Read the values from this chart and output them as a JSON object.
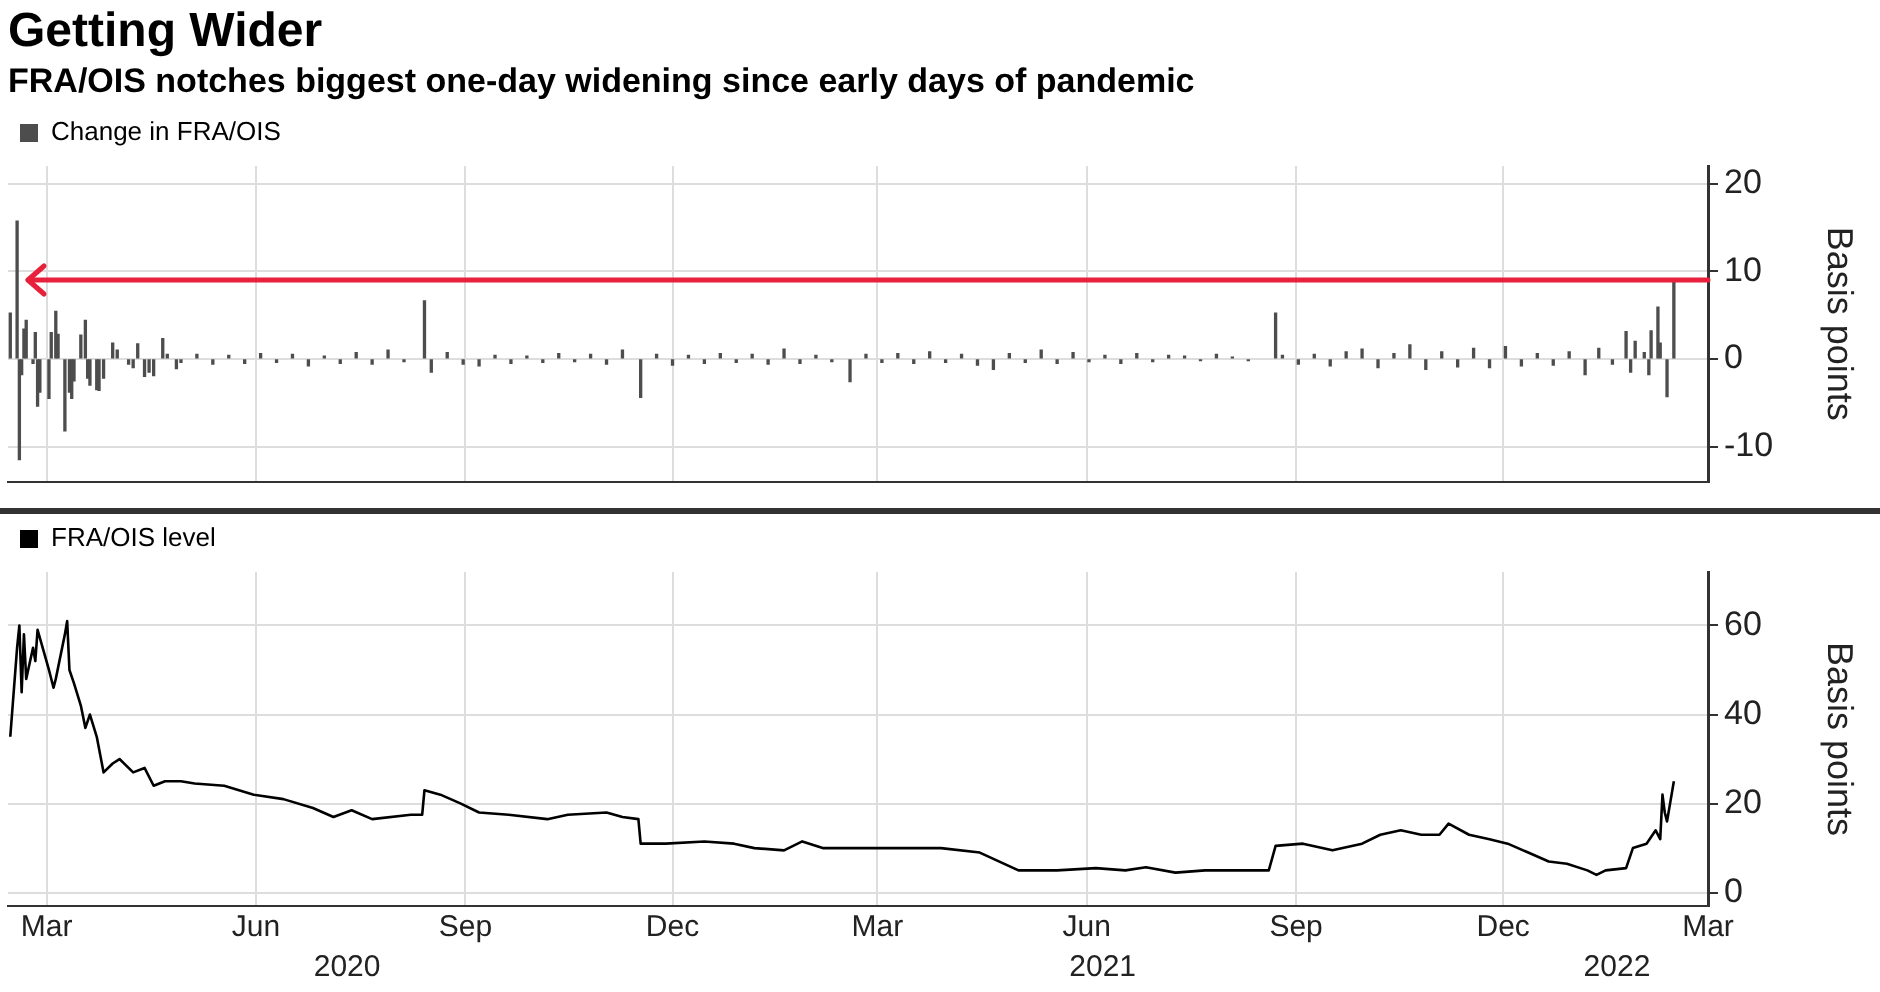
{
  "chart_data": [
    {
      "type": "bar",
      "title": "Getting Wider",
      "subtitle": "FRA/OIS notches biggest one-day widening since early days of pandemic",
      "ylabel": "Basis points",
      "legend": "top left",
      "grid": true,
      "tick_labels": "y",
      "xlim": [
        "2020-02-13",
        "2022-03-01"
      ],
      "xticks": [
        {
          "value": "2020-03-01",
          "label": null
        },
        {
          "value": "2020-06-01",
          "label": null
        },
        {
          "value": "2020-09-01",
          "label": null
        },
        {
          "value": "2020-12-01",
          "label": null
        },
        {
          "value": "2021-03-01",
          "label": null
        },
        {
          "value": "2021-06-01",
          "label": null
        },
        {
          "value": "2021-09-01",
          "label": null
        },
        {
          "value": "2021-12-01",
          "label": null
        },
        {
          "value": "2022-03-01",
          "label": null
        }
      ],
      "ylim": [
        -14,
        22
      ],
      "yticks": [
        -10,
        0,
        10,
        20
      ],
      "ref_lines": [
        {
          "axis": "y",
          "value": 9,
          "color": "#e8203c"
        }
      ],
      "series": [
        {
          "name": "Change in FRA/OIS",
          "color": "#4d4d4d",
          "x": [
            "2020-02-14",
            "2020-02-17",
            "2020-02-18",
            "2020-02-19",
            "2020-02-20",
            "2020-02-21",
            "2020-02-24",
            "2020-02-25",
            "2020-02-26",
            "2020-02-27",
            "2020-03-02",
            "2020-03-03",
            "2020-03-05",
            "2020-03-06",
            "2020-03-09",
            "2020-03-11",
            "2020-03-12",
            "2020-03-13",
            "2020-03-16",
            "2020-03-18",
            "2020-03-19",
            "2020-03-20",
            "2020-03-23",
            "2020-03-24",
            "2020-03-26",
            "2020-03-30",
            "2020-04-01",
            "2020-04-06",
            "2020-04-08",
            "2020-04-10",
            "2020-04-13",
            "2020-04-15",
            "2020-04-17",
            "2020-04-21",
            "2020-04-23",
            "2020-04-27",
            "2020-04-29",
            "2020-05-06",
            "2020-05-13",
            "2020-05-20",
            "2020-05-27",
            "2020-06-03",
            "2020-06-10",
            "2020-06-17",
            "2020-06-24",
            "2020-07-01",
            "2020-07-08",
            "2020-07-15",
            "2020-07-22",
            "2020-07-29",
            "2020-08-05",
            "2020-08-14",
            "2020-08-17",
            "2020-08-24",
            "2020-08-31",
            "2020-09-07",
            "2020-09-14",
            "2020-09-21",
            "2020-09-28",
            "2020-10-05",
            "2020-10-12",
            "2020-10-19",
            "2020-10-26",
            "2020-11-02",
            "2020-11-09",
            "2020-11-17",
            "2020-11-24",
            "2020-12-01",
            "2020-12-08",
            "2020-12-15",
            "2020-12-22",
            "2020-12-29",
            "2021-01-05",
            "2021-01-12",
            "2021-01-19",
            "2021-01-26",
            "2021-02-02",
            "2021-02-09",
            "2021-02-17",
            "2021-02-24",
            "2021-03-03",
            "2021-03-10",
            "2021-03-17",
            "2021-03-24",
            "2021-03-31",
            "2021-04-07",
            "2021-04-14",
            "2021-04-21",
            "2021-04-28",
            "2021-05-05",
            "2021-05-12",
            "2021-05-19",
            "2021-05-26",
            "2021-06-02",
            "2021-06-09",
            "2021-06-16",
            "2021-06-23",
            "2021-06-30",
            "2021-07-07",
            "2021-07-14",
            "2021-07-21",
            "2021-07-28",
            "2021-08-04",
            "2021-08-11",
            "2021-08-23",
            "2021-08-26",
            "2021-09-02",
            "2021-09-09",
            "2021-09-16",
            "2021-09-23",
            "2021-09-30",
            "2021-10-07",
            "2021-10-14",
            "2021-10-21",
            "2021-10-28",
            "2021-11-04",
            "2021-11-11",
            "2021-11-18",
            "2021-11-25",
            "2021-12-02",
            "2021-12-09",
            "2021-12-16",
            "2021-12-23",
            "2021-12-30",
            "2022-01-06",
            "2022-01-12",
            "2022-01-18",
            "2022-01-24",
            "2022-01-26",
            "2022-01-28",
            "2022-02-01",
            "2022-02-03",
            "2022-02-04",
            "2022-02-07",
            "2022-02-08",
            "2022-02-11",
            "2022-02-14"
          ],
          "values": [
            5.2,
            15.7,
            -11.5,
            -1.8,
            3.4,
            4.4,
            -0.5,
            3.0,
            -5.4,
            -3.8,
            -4.5,
            3.0,
            5.4,
            2.8,
            -8.2,
            -3.8,
            -4.5,
            -2.5,
            2.7,
            4.4,
            -2.2,
            -3.0,
            -3.5,
            -3.6,
            -2.2,
            1.8,
            1.0,
            -0.6,
            -1.0,
            1.7,
            -2.0,
            -1.5,
            -1.9,
            2.3,
            0.5,
            -1.1,
            -0.4,
            0.5,
            -0.6,
            0.4,
            -0.5,
            0.6,
            -0.4,
            0.5,
            -0.8,
            0.3,
            -0.5,
            0.7,
            -0.6,
            1.0,
            -0.3,
            6.6,
            -1.5,
            0.7,
            -0.6,
            -0.8,
            0.4,
            -0.5,
            0.3,
            -0.4,
            0.6,
            -0.3,
            0.5,
            -0.6,
            1.0,
            -4.4,
            0.5,
            -0.7,
            0.4,
            -0.5,
            0.6,
            -0.4,
            0.5,
            -0.6,
            1.1,
            -0.5,
            0.4,
            -0.3,
            -2.6,
            0.5,
            -0.4,
            0.6,
            -0.5,
            0.8,
            -0.4,
            0.5,
            -0.7,
            -1.2,
            0.6,
            -0.4,
            1.0,
            -0.5,
            0.7,
            -0.3,
            0.4,
            -0.5,
            0.6,
            -0.3,
            0.4,
            0.3,
            -0.2,
            0.5,
            0.2,
            -0.2,
            5.2,
            0.4,
            -0.6,
            0.5,
            -0.8,
            0.8,
            1.1,
            -1.0,
            0.6,
            1.6,
            -1.2,
            0.8,
            -0.9,
            1.2,
            -1.0,
            1.4,
            -0.8,
            0.6,
            -0.7,
            0.8,
            -1.8,
            1.2,
            -0.6,
            3.1,
            -1.5,
            2.0,
            0.7,
            -1.8,
            3.2,
            5.9,
            1.8,
            -4.3,
            9.0
          ]
        }
      ]
    },
    {
      "type": "line",
      "ylabel": "Basis points",
      "legend": "top left",
      "grid": true,
      "marker": "none",
      "xlim": [
        "2020-02-13",
        "2022-03-01"
      ],
      "xticks": [
        {
          "value": "2020-03-01",
          "label": "Mar"
        },
        {
          "value": "2020-06-01",
          "label": "Jun"
        },
        {
          "value": "2020-09-01",
          "label": "Sep"
        },
        {
          "value": "2020-12-01",
          "label": "Dec"
        },
        {
          "value": "2021-03-01",
          "label": "Mar"
        },
        {
          "value": "2021-06-01",
          "label": "Jun"
        },
        {
          "value": "2021-09-01",
          "label": "Sep"
        },
        {
          "value": "2021-12-01",
          "label": "Dec"
        },
        {
          "value": "2022-03-01",
          "label": "Mar"
        }
      ],
      "x2lim": [
        "2020-02-13",
        "2022-03-01"
      ],
      "x2ticks": [
        {
          "value": "2020-07-11",
          "label": "2020"
        },
        {
          "value": "2021-06-08",
          "label": "2021"
        },
        {
          "value": "2022-01-20",
          "label": "2022"
        }
      ],
      "ylim": [
        -3,
        72
      ],
      "yticks": [
        0,
        20,
        40,
        60
      ],
      "series": [
        {
          "name": "FRA/OIS level",
          "color": "#000000",
          "x": [
            "2020-02-14",
            "2020-02-17",
            "2020-02-18",
            "2020-02-19",
            "2020-02-20",
            "2020-02-21",
            "2020-02-24",
            "2020-02-25",
            "2020-02-26",
            "2020-03-02",
            "2020-03-04",
            "2020-03-05",
            "2020-03-09",
            "2020-03-10",
            "2020-03-11",
            "2020-03-13",
            "2020-03-16",
            "2020-03-18",
            "2020-03-20",
            "2020-03-23",
            "2020-03-26",
            "2020-03-30",
            "2020-04-02",
            "2020-04-08",
            "2020-04-13",
            "2020-04-17",
            "2020-04-22",
            "2020-04-29",
            "2020-05-05",
            "2020-05-18",
            "2020-05-31",
            "2020-06-13",
            "2020-06-26",
            "2020-07-05",
            "2020-07-13",
            "2020-07-22",
            "2020-08-08",
            "2020-08-13",
            "2020-08-14",
            "2020-08-21",
            "2020-08-30",
            "2020-09-07",
            "2020-09-20",
            "2020-10-07",
            "2020-10-16",
            "2020-11-02",
            "2020-11-09",
            "2020-11-16",
            "2020-11-17",
            "2020-11-28",
            "2020-12-15",
            "2020-12-28",
            "2021-01-06",
            "2021-01-19",
            "2021-01-27",
            "2021-02-05",
            "2021-02-18",
            "2021-03-07",
            "2021-03-29",
            "2021-04-15",
            "2021-05-02",
            "2021-05-19",
            "2021-06-05",
            "2021-06-18",
            "2021-06-27",
            "2021-07-10",
            "2021-07-23",
            "2021-08-13",
            "2021-08-20",
            "2021-08-23",
            "2021-09-04",
            "2021-09-17",
            "2021-09-30",
            "2021-10-08",
            "2021-10-17",
            "2021-10-26",
            "2021-11-03",
            "2021-11-07",
            "2021-11-16",
            "2021-11-25",
            "2021-12-03",
            "2021-12-12",
            "2021-12-21",
            "2021-12-29",
            "2022-01-07",
            "2022-01-11",
            "2022-01-15",
            "2022-01-24",
            "2022-01-27",
            "2022-02-02",
            "2022-02-06",
            "2022-02-08",
            "2022-02-09",
            "2022-02-10",
            "2022-02-11",
            "2022-02-14"
          ],
          "values": [
            35,
            55,
            60,
            45,
            58,
            48,
            55,
            52,
            59,
            50,
            46,
            48,
            58,
            61,
            50,
            47,
            42,
            37,
            40,
            35,
            27,
            29,
            30,
            27,
            28,
            24,
            25,
            25,
            24.5,
            24,
            22,
            21,
            19,
            17,
            18.5,
            16.5,
            17.5,
            17.5,
            23,
            22,
            20,
            18,
            17.5,
            16.5,
            17.5,
            18,
            17,
            16.5,
            11,
            11,
            11.5,
            11,
            10,
            9.5,
            11.5,
            10,
            10,
            10,
            10,
            9,
            5,
            5,
            5.5,
            5,
            5.7,
            4.5,
            5,
            5,
            5,
            10.5,
            11,
            9.5,
            11,
            13,
            14,
            13,
            13,
            15.5,
            13,
            12,
            11,
            9,
            7,
            6.5,
            5,
            4,
            5,
            5.5,
            10,
            11,
            14,
            12,
            22,
            18,
            16,
            25
          ]
        }
      ]
    }
  ]
}
